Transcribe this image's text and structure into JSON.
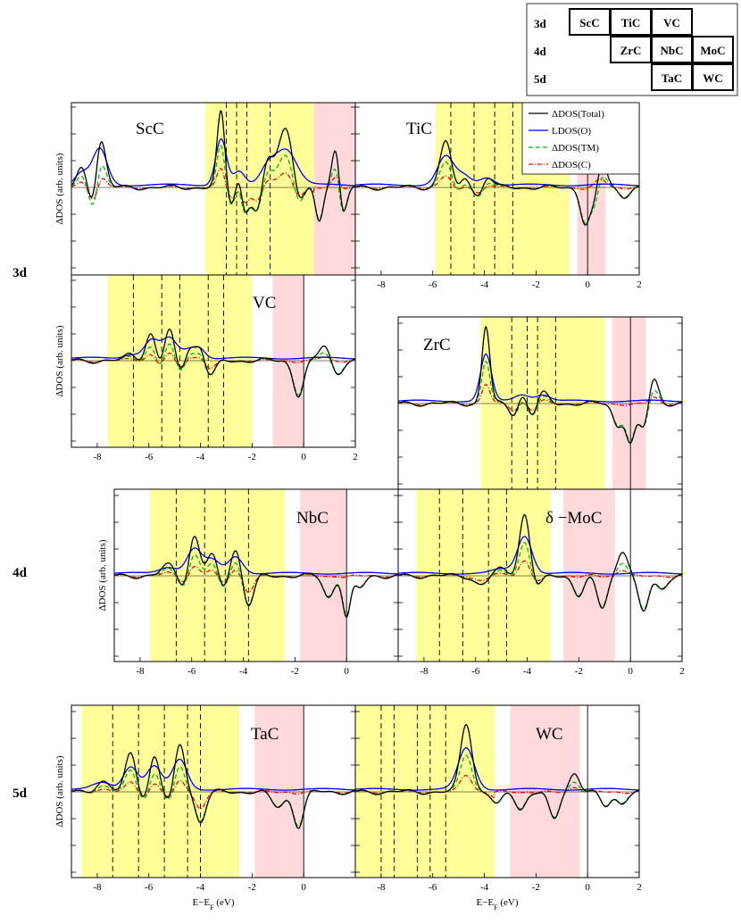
{
  "chart_data": {
    "type": "line",
    "figure": "Difference DOS for transition-metal monocarbides",
    "legend": {
      "placement": "top-right",
      "entries": [
        {
          "label": "ΔDOS(Total)",
          "color": "#000000",
          "style": "solid"
        },
        {
          "label": "LDOS(O)",
          "color": "#0000ff",
          "style": "solid"
        },
        {
          "label": "ΔDOS(TM)",
          "color": "#00bb00",
          "style": "dashed"
        },
        {
          "label": "ΔDOS(C)",
          "color": "#ff0000",
          "style": "dashdot"
        }
      ]
    },
    "periodic_table": {
      "rows": [
        {
          "label": "3d",
          "cells": [
            "ScC",
            "TiC",
            "VC",
            ""
          ]
        },
        {
          "label": "4d",
          "cells": [
            "",
            "ZrC",
            "NbC",
            "MoC"
          ]
        },
        {
          "label": "5d",
          "cells": [
            "",
            "",
            "TaC",
            "WC"
          ]
        }
      ]
    },
    "row_labels": [
      "3d",
      "4d",
      "5d"
    ],
    "ylabel": "ΔDOS (arb. units)",
    "xlabel": "E−E",
    "xlabel_sub": "F",
    "xlabel_unit": " (eV)",
    "panels": [
      {
        "id": "ScC",
        "title": "ScC",
        "xlim": [
          -9,
          2
        ],
        "xticks": [],
        "show_ylabel": true,
        "show_vline": false,
        "yellow": [
          -3.8,
          0.4
        ],
        "pink": [
          0.4,
          2.0
        ],
        "dashed": [
          -3.0,
          -2.6,
          -2.2,
          -1.3
        ],
        "peaks": [
          [
            -8.6,
            0.9,
            0.18
          ],
          [
            -7.9,
            2.8,
            0.2
          ],
          [
            -3.2,
            3.6,
            0.15
          ],
          [
            -2.5,
            1.0,
            0.15
          ],
          [
            -1.4,
            1.2,
            0.2
          ],
          [
            -0.7,
            2.8,
            0.3
          ],
          [
            1.25,
            2.0,
            0.15
          ]
        ],
        "dips": [
          [
            -8.1,
            -1.5,
            0.18
          ],
          [
            -2.8,
            -0.9,
            0.2
          ],
          [
            -2.3,
            -1.3,
            0.15
          ],
          [
            -1.8,
            -1.2,
            0.2
          ],
          [
            -0.2,
            -0.9,
            0.2
          ],
          [
            0.6,
            -1.6,
            0.15
          ],
          [
            1.5,
            -1.3,
            0.15
          ]
        ]
      },
      {
        "id": "TiC",
        "title": "TiC",
        "xlim": [
          -9,
          2
        ],
        "xticks": [
          -8,
          -6,
          -4,
          -2,
          0,
          2
        ],
        "show_ylabel": false,
        "show_vline": true,
        "yellow": [
          -5.9,
          -0.7
        ],
        "pink": [
          -0.4,
          0.7
        ],
        "dashed": [
          -5.3,
          -4.4,
          -3.6,
          -2.9
        ],
        "peaks": [
          [
            -5.5,
            2.2,
            0.22
          ],
          [
            -4.8,
            0.7,
            0.2
          ],
          [
            -3.9,
            0.6,
            0.2
          ],
          [
            0.5,
            1.6,
            0.2
          ]
        ],
        "dips": [
          [
            -5.0,
            -0.5,
            0.2
          ],
          [
            -4.2,
            -0.5,
            0.2
          ],
          [
            -0.1,
            -1.6,
            0.18
          ],
          [
            0.3,
            -1.3,
            0.18
          ],
          [
            1.4,
            -0.4,
            0.2
          ]
        ]
      },
      {
        "id": "VC",
        "title": "VC",
        "xlim": [
          -9,
          2
        ],
        "xticks": [
          -8,
          -6,
          -4,
          -2,
          0,
          2
        ],
        "show_ylabel": true,
        "show_vline": true,
        "yellow": [
          -7.6,
          -2.0
        ],
        "pink": [
          -1.2,
          0.0
        ],
        "dashed": [
          -6.6,
          -5.5,
          -4.8,
          -3.7,
          -3.1
        ],
        "peaks": [
          [
            -6.7,
            0.3,
            0.2
          ],
          [
            -5.9,
            1.4,
            0.2
          ],
          [
            -5.2,
            1.5,
            0.2
          ],
          [
            -4.4,
            0.7,
            0.2
          ],
          [
            -4.0,
            0.6,
            0.15
          ],
          [
            0.8,
            0.7,
            0.2
          ]
        ],
        "dips": [
          [
            -5.6,
            -0.5,
            0.2
          ],
          [
            -4.8,
            -0.6,
            0.2
          ],
          [
            -3.6,
            -0.7,
            0.2
          ],
          [
            -0.2,
            -1.6,
            0.2
          ],
          [
            1.3,
            -0.6,
            0.2
          ]
        ]
      },
      {
        "id": "ZrC",
        "title": "ZrC",
        "xlim": [
          -9,
          2
        ],
        "xticks": [],
        "show_ylabel": false,
        "show_vline": true,
        "yellow": [
          -5.8,
          -1.0
        ],
        "pink": [
          -0.7,
          0.6
        ],
        "dashed": [
          -4.6,
          -4.0,
          -3.6,
          -2.9
        ],
        "peaks": [
          [
            -5.6,
            3.6,
            0.15
          ],
          [
            -4.2,
            0.5,
            0.2
          ],
          [
            -3.4,
            0.5,
            0.2
          ],
          [
            0.9,
            1.2,
            0.18
          ]
        ],
        "dips": [
          [
            -4.5,
            -0.6,
            0.18
          ],
          [
            -3.8,
            -0.6,
            0.18
          ],
          [
            -0.5,
            -1.0,
            0.18
          ],
          [
            0.0,
            -1.8,
            0.18
          ],
          [
            0.5,
            -1.2,
            0.18
          ]
        ]
      },
      {
        "id": "NbC",
        "title": "NbC",
        "xlim": [
          -9,
          2
        ],
        "xticks": [
          -8,
          -6,
          -4,
          -2,
          0
        ],
        "show_ylabel": true,
        "show_vline": true,
        "yellow": [
          -7.6,
          -2.4
        ],
        "pink": [
          -1.8,
          0.0
        ],
        "dashed": [
          -6.6,
          -5.5,
          -4.7,
          -3.8
        ],
        "peaks": [
          [
            -6.9,
            0.5,
            0.25
          ],
          [
            -5.9,
            1.9,
            0.2
          ],
          [
            -5.2,
            1.0,
            0.2
          ],
          [
            -4.3,
            1.3,
            0.2
          ]
        ],
        "dips": [
          [
            -6.3,
            -0.5,
            0.2
          ],
          [
            -4.8,
            -0.6,
            0.2
          ],
          [
            -3.8,
            -1.4,
            0.2
          ],
          [
            -0.7,
            -1.0,
            0.2
          ],
          [
            0.0,
            -1.9,
            0.15
          ],
          [
            0.5,
            -0.6,
            0.2
          ]
        ]
      },
      {
        "id": "MoC",
        "title": "δ −MoC",
        "xlim": [
          -9,
          2
        ],
        "xticks": [
          -8,
          -6,
          -4,
          -2,
          0,
          2
        ],
        "show_ylabel": false,
        "show_vline": true,
        "yellow": [
          -8.3,
          -3.1
        ],
        "pink": [
          -2.6,
          -0.6
        ],
        "dashed": [
          -7.4,
          -6.5,
          -5.5,
          -4.8
        ],
        "peaks": [
          [
            -4.1,
            2.9,
            0.2
          ],
          [
            -5.0,
            0.3,
            0.25
          ],
          [
            -0.3,
            1.2,
            0.2
          ]
        ],
        "dips": [
          [
            -5.8,
            -0.4,
            0.25
          ],
          [
            -3.6,
            -0.5,
            0.2
          ],
          [
            -2.0,
            -0.9,
            0.2
          ],
          [
            -1.1,
            -1.5,
            0.2
          ],
          [
            0.5,
            -1.7,
            0.2
          ],
          [
            1.2,
            -0.6,
            0.2
          ]
        ]
      },
      {
        "id": "TaC",
        "title": "TaC",
        "xlim": [
          -9,
          2
        ],
        "xticks": [
          -8,
          -6,
          -4,
          -2,
          0
        ],
        "show_ylabel": true,
        "show_vline": true,
        "yellow": [
          -8.6,
          -2.5
        ],
        "pink": [
          -1.9,
          0.0
        ],
        "dashed": [
          -7.4,
          -6.4,
          -5.4,
          -4.5,
          -4.0
        ],
        "peaks": [
          [
            -7.8,
            0.5,
            0.25
          ],
          [
            -6.7,
            1.8,
            0.2
          ],
          [
            -5.8,
            1.8,
            0.2
          ],
          [
            -4.8,
            2.3,
            0.2
          ]
        ],
        "dips": [
          [
            -6.1,
            -0.5,
            0.2
          ],
          [
            -5.2,
            -0.6,
            0.2
          ],
          [
            -4.0,
            -1.4,
            0.2
          ],
          [
            -1.0,
            -0.7,
            0.25
          ],
          [
            -0.2,
            -1.6,
            0.2
          ]
        ]
      },
      {
        "id": "WC",
        "title": "WC",
        "xlim": [
          -9,
          2
        ],
        "xticks": [
          -8,
          -6,
          -4,
          -2,
          0,
          2
        ],
        "show_ylabel": false,
        "show_vline": true,
        "yellow": [
          -9.0,
          -3.6
        ],
        "pink": [
          -3.0,
          -0.3
        ],
        "dashed": [
          -8.0,
          -7.5,
          -6.6,
          -6.1,
          -5.5
        ],
        "peaks": [
          [
            -4.7,
            3.2,
            0.22
          ],
          [
            -0.5,
            0.9,
            0.2
          ]
        ],
        "dips": [
          [
            -3.5,
            -0.6,
            0.2
          ],
          [
            -2.6,
            -0.8,
            0.2
          ],
          [
            -1.3,
            -1.3,
            0.2
          ],
          [
            0.7,
            -0.7,
            0.2
          ],
          [
            1.3,
            -0.5,
            0.2
          ]
        ]
      }
    ]
  }
}
